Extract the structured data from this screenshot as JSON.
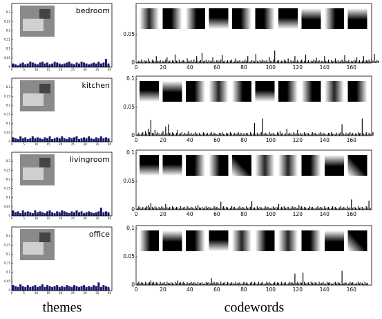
{
  "chart_data": [
    {
      "type": "bar",
      "title": "bedroom",
      "color": "#1a1a6e",
      "xlim": [
        0,
        41
      ],
      "xticks": [
        0,
        5,
        10,
        15,
        20,
        25,
        30,
        35,
        40
      ],
      "ylim": [
        0,
        0.35
      ],
      "yticks": [
        0,
        0.05,
        0.1,
        0.15,
        0.2,
        0.25,
        0.3
      ],
      "values": [
        0.02,
        0.015,
        0.01,
        0.02,
        0.025,
        0.015,
        0.02,
        0.03,
        0.025,
        0.02,
        0.015,
        0.025,
        0.03,
        0.02,
        0.025,
        0.015,
        0.02,
        0.03,
        0.025,
        0.02,
        0.015,
        0.02,
        0.025,
        0.03,
        0.02,
        0.015,
        0.025,
        0.02,
        0.03,
        0.025,
        0.02,
        0.015,
        0.02,
        0.025,
        0.02,
        0.03,
        0.02,
        0.025,
        0.045,
        0.02
      ]
    },
    {
      "type": "bar",
      "title": "kitchen",
      "color": "#1a1a6e",
      "xlim": [
        0,
        41
      ],
      "xticks": [
        0,
        5,
        10,
        15,
        20,
        25,
        30,
        35,
        40
      ],
      "ylim": [
        0,
        0.35
      ],
      "yticks": [
        0,
        0.05,
        0.1,
        0.15,
        0.2,
        0.25,
        0.3
      ],
      "values": [
        0.025,
        0.02,
        0.015,
        0.03,
        0.02,
        0.025,
        0.015,
        0.02,
        0.03,
        0.02,
        0.025,
        0.02,
        0.015,
        0.025,
        0.02,
        0.03,
        0.015,
        0.02,
        0.025,
        0.02,
        0.03,
        0.02,
        0.015,
        0.025,
        0.02,
        0.025,
        0.03,
        0.015,
        0.02,
        0.025,
        0.02,
        0.03,
        0.02,
        0.015,
        0.025,
        0.02,
        0.03,
        0.02,
        0.025,
        0.02
      ]
    },
    {
      "type": "bar",
      "title": "livingroom",
      "color": "#1a1a6e",
      "xlim": [
        0,
        41
      ],
      "xticks": [
        0,
        5,
        10,
        15,
        20,
        25,
        30,
        35,
        40
      ],
      "ylim": [
        0,
        0.35
      ],
      "yticks": [
        0,
        0.05,
        0.1,
        0.15,
        0.2,
        0.25,
        0.3
      ],
      "values": [
        0.03,
        0.02,
        0.025,
        0.015,
        0.03,
        0.02,
        0.025,
        0.02,
        0.015,
        0.03,
        0.02,
        0.025,
        0.02,
        0.015,
        0.025,
        0.03,
        0.02,
        0.015,
        0.025,
        0.02,
        0.03,
        0.025,
        0.02,
        0.015,
        0.025,
        0.02,
        0.03,
        0.02,
        0.025,
        0.015,
        0.02,
        0.025,
        0.02,
        0.015,
        0.02,
        0.025,
        0.045,
        0.02,
        0.025,
        0.02
      ]
    },
    {
      "type": "bar",
      "title": "office",
      "color": "#1a1a6e",
      "xlim": [
        0,
        41
      ],
      "xticks": [
        0,
        5,
        10,
        15,
        20,
        25,
        30,
        35,
        40
      ],
      "ylim": [
        0,
        0.35
      ],
      "yticks": [
        0,
        0.05,
        0.1,
        0.15,
        0.2,
        0.25,
        0.3
      ],
      "values": [
        0.03,
        0.025,
        0.02,
        0.035,
        0.025,
        0.02,
        0.03,
        0.02,
        0.025,
        0.03,
        0.02,
        0.025,
        0.035,
        0.02,
        0.03,
        0.025,
        0.02,
        0.025,
        0.03,
        0.02,
        0.025,
        0.02,
        0.03,
        0.025,
        0.02,
        0.03,
        0.025,
        0.02,
        0.025,
        0.03,
        0.02,
        0.025,
        0.02,
        0.03,
        0.025,
        0.045,
        0.02,
        0.03,
        0.025,
        0.02
      ]
    },
    {
      "type": "bar",
      "color": "#000000",
      "xlim": [
        0,
        175
      ],
      "xticks": [
        0,
        20,
        40,
        60,
        80,
        100,
        120,
        140,
        160
      ],
      "ylim": [
        0,
        0.105
      ],
      "yticks": [
        0,
        0.05
      ],
      "values": [
        0.002,
        0.004,
        0.003,
        0.006,
        0.002,
        0.005,
        0.003,
        0.004,
        0.008,
        0.003,
        0.002,
        0.006,
        0.004,
        0.003,
        0.012,
        0.004,
        0.003,
        0.005,
        0.002,
        0.004,
        0.003,
        0.006,
        0.01,
        0.003,
        0.004,
        0.002,
        0.005,
        0.003,
        0.015,
        0.004,
        0.003,
        0.006,
        0.002,
        0.004,
        0.005,
        0.003,
        0.002,
        0.008,
        0.004,
        0.003,
        0.005,
        0.002,
        0.006,
        0.003,
        0.012,
        0.004,
        0.003,
        0.005,
        0.018,
        0.003,
        0.004,
        0.006,
        0.002,
        0.005,
        0.003,
        0.004,
        0.01,
        0.003,
        0.002,
        0.005,
        0.004,
        0.003,
        0.006,
        0.014,
        0.003,
        0.004,
        0.002,
        0.005,
        0.003,
        0.004,
        0.006,
        0.002,
        0.003,
        0.008,
        0.004,
        0.003,
        0.005,
        0.002,
        0.004,
        0.003,
        0.006,
        0.004,
        0.012,
        0.003,
        0.002,
        0.005,
        0.004,
        0.003,
        0.016,
        0.004,
        0.002,
        0.005,
        0.003,
        0.006,
        0.004,
        0.003,
        0.005,
        0.002,
        0.01,
        0.004,
        0.003,
        0.006,
        0.022,
        0.003,
        0.004,
        0.005,
        0.002,
        0.004,
        0.003,
        0.006,
        0.004,
        0.003,
        0.008,
        0.002,
        0.005,
        0.003,
        0.004,
        0.012,
        0.003,
        0.005,
        0.002,
        0.004,
        0.006,
        0.003,
        0.004,
        0.015,
        0.003,
        0.005,
        0.002,
        0.004,
        0.003,
        0.006,
        0.004,
        0.009,
        0.003,
        0.005,
        0.002,
        0.004,
        0.003,
        0.012,
        0.004,
        0.003,
        0.006,
        0.002,
        0.005,
        0.003,
        0.004,
        0.008,
        0.003,
        0.005,
        0.002,
        0.004,
        0.006,
        0.003,
        0.014,
        0.004,
        0.003,
        0.005,
        0.002,
        0.004,
        0.003,
        0.006,
        0.004,
        0.01,
        0.003,
        0.005,
        0.002,
        0.004,
        0.012,
        0.003,
        0.005,
        0.004,
        0.006,
        0.003,
        0.008,
        0.004,
        0.016,
        0.003,
        0.005,
        0.004
      ]
    },
    {
      "type": "bar",
      "color": "#000000",
      "xlim": [
        0,
        175
      ],
      "xticks": [
        0,
        20,
        40,
        60,
        80,
        100,
        120,
        140,
        160
      ],
      "ylim": [
        0,
        0.105
      ],
      "yticks": [
        0,
        0.05,
        0.1
      ],
      "values": [
        0.003,
        0.005,
        0.002,
        0.004,
        0.006,
        0.003,
        0.008,
        0.004,
        0.012,
        0.006,
        0.028,
        0.005,
        0.004,
        0.01,
        0.003,
        0.006,
        0.004,
        0.002,
        0.005,
        0.008,
        0.003,
        0.016,
        0.004,
        0.02,
        0.005,
        0.003,
        0.006,
        0.004,
        0.002,
        0.005,
        0.01,
        0.003,
        0.004,
        0.006,
        0.002,
        0.005,
        0.003,
        0.004,
        0.008,
        0.003,
        0.005,
        0.002,
        0.004,
        0.006,
        0.003,
        0.004,
        0.005,
        0.002,
        0.003,
        0.006,
        0.004,
        0.003,
        0.005,
        0.002,
        0.004,
        0.006,
        0.003,
        0.005,
        0.004,
        0.002,
        0.003,
        0.005,
        0.004,
        0.006,
        0.003,
        0.002,
        0.005,
        0.004,
        0.003,
        0.006,
        0.004,
        0.002,
        0.005,
        0.003,
        0.004,
        0.006,
        0.003,
        0.005,
        0.002,
        0.004,
        0.003,
        0.005,
        0.004,
        0.002,
        0.006,
        0.003,
        0.004,
        0.022,
        0.003,
        0.005,
        0.002,
        0.004,
        0.006,
        0.03,
        0.003,
        0.005,
        0.004,
        0.002,
        0.006,
        0.003,
        0.004,
        0.005,
        0.002,
        0.003,
        0.006,
        0.004,
        0.008,
        0.003,
        0.005,
        0.002,
        0.004,
        0.012,
        0.003,
        0.005,
        0.004,
        0.002,
        0.006,
        0.003,
        0.004,
        0.01,
        0.003,
        0.005,
        0.002,
        0.004,
        0.006,
        0.003,
        0.005,
        0.004,
        0.002,
        0.003,
        0.006,
        0.004,
        0.005,
        0.003,
        0.002,
        0.004,
        0.006,
        0.003,
        0.005,
        0.004,
        0.002,
        0.003,
        0.005,
        0.004,
        0.006,
        0.003,
        0.004,
        0.002,
        0.005,
        0.003,
        0.004,
        0.006,
        0.02,
        0.004,
        0.002,
        0.005,
        0.003,
        0.004,
        0.006,
        0.003,
        0.005,
        0.002,
        0.004,
        0.003,
        0.006,
        0.004,
        0.005,
        0.03,
        0.004,
        0.003,
        0.006,
        0.002,
        0.005,
        0.003,
        0.004,
        0.006
      ]
    },
    {
      "type": "bar",
      "color": "#000000",
      "xlim": [
        0,
        175
      ],
      "xticks": [
        0,
        20,
        40,
        60,
        80,
        100,
        120,
        140,
        160
      ],
      "ylim": [
        0,
        0.105
      ],
      "yticks": [
        0,
        0.05,
        0.1
      ],
      "values": [
        0.003,
        0.006,
        0.004,
        0.002,
        0.005,
        0.003,
        0.004,
        0.006,
        0.008,
        0.004,
        0.012,
        0.005,
        0.003,
        0.006,
        0.004,
        0.002,
        0.005,
        0.003,
        0.006,
        0.004,
        0.003,
        0.01,
        0.004,
        0.003,
        0.005,
        0.002,
        0.006,
        0.004,
        0.003,
        0.005,
        0.004,
        0.002,
        0.006,
        0.003,
        0.004,
        0.005,
        0.002,
        0.006,
        0.004,
        0.003,
        0.005,
        0.004,
        0.002,
        0.006,
        0.003,
        0.008,
        0.004,
        0.003,
        0.005,
        0.002,
        0.004,
        0.006,
        0.003,
        0.005,
        0.004,
        0.002,
        0.003,
        0.006,
        0.004,
        0.005,
        0.003,
        0.002,
        0.014,
        0.004,
        0.006,
        0.003,
        0.005,
        0.004,
        0.002,
        0.003,
        0.006,
        0.004,
        0.005,
        0.003,
        0.002,
        0.004,
        0.006,
        0.003,
        0.005,
        0.004,
        0.002,
        0.006,
        0.003,
        0.004,
        0.005,
        0.015,
        0.003,
        0.004,
        0.002,
        0.006,
        0.003,
        0.005,
        0.004,
        0.002,
        0.003,
        0.006,
        0.004,
        0.005,
        0.003,
        0.002,
        0.004,
        0.006,
        0.003,
        0.005,
        0.004,
        0.01,
        0.002,
        0.005,
        0.004,
        0.006,
        0.003,
        0.004,
        0.005,
        0.002,
        0.003,
        0.006,
        0.004,
        0.005,
        0.003,
        0.002,
        0.008,
        0.004,
        0.006,
        0.003,
        0.005,
        0.004,
        0.002,
        0.003,
        0.006,
        0.004,
        0.005,
        0.003,
        0.002,
        0.004,
        0.006,
        0.003,
        0.005,
        0.004,
        0.002,
        0.006,
        0.003,
        0.004,
        0.005,
        0.002,
        0.003,
        0.006,
        0.004,
        0.005,
        0.003,
        0.002,
        0.004,
        0.006,
        0.003,
        0.005,
        0.004,
        0.002,
        0.006,
        0.003,
        0.004,
        0.018,
        0.003,
        0.005,
        0.004,
        0.002,
        0.006,
        0.003,
        0.004,
        0.005,
        0.002,
        0.003,
        0.006,
        0.004,
        0.016,
        0.003
      ]
    },
    {
      "type": "bar",
      "color": "#000000",
      "xlim": [
        0,
        175
      ],
      "xticks": [
        0,
        20,
        40,
        60,
        80,
        100,
        120,
        140,
        160
      ],
      "ylim": [
        0,
        0.105
      ],
      "yticks": [
        0,
        0.05,
        0.1
      ],
      "values": [
        0.004,
        0.006,
        0.003,
        0.005,
        0.004,
        0.002,
        0.006,
        0.003,
        0.004,
        0.005,
        0.008,
        0.004,
        0.006,
        0.003,
        0.005,
        0.004,
        0.002,
        0.006,
        0.003,
        0.004,
        0.005,
        0.002,
        0.006,
        0.004,
        0.003,
        0.005,
        0.004,
        0.002,
        0.006,
        0.003,
        0.008,
        0.004,
        0.005,
        0.003,
        0.006,
        0.004,
        0.002,
        0.005,
        0.003,
        0.004,
        0.006,
        0.003,
        0.005,
        0.004,
        0.002,
        0.006,
        0.003,
        0.004,
        0.005,
        0.002,
        0.003,
        0.006,
        0.004,
        0.005,
        0.003,
        0.012,
        0.004,
        0.006,
        0.003,
        0.005,
        0.004,
        0.002,
        0.006,
        0.003,
        0.004,
        0.005,
        0.002,
        0.006,
        0.004,
        0.003,
        0.005,
        0.004,
        0.002,
        0.006,
        0.003,
        0.004,
        0.005,
        0.002,
        0.003,
        0.006,
        0.004,
        0.005,
        0.003,
        0.002,
        0.004,
        0.006,
        0.003,
        0.005,
        0.004,
        0.002,
        0.006,
        0.003,
        0.004,
        0.005,
        0.002,
        0.003,
        0.006,
        0.004,
        0.005,
        0.003,
        0.002,
        0.004,
        0.006,
        0.003,
        0.005,
        0.004,
        0.002,
        0.006,
        0.003,
        0.004,
        0.005,
        0.002,
        0.003,
        0.006,
        0.004,
        0.005,
        0.003,
        0.02,
        0.004,
        0.006,
        0.003,
        0.005,
        0.004,
        0.022,
        0.006,
        0.003,
        0.004,
        0.005,
        0.002,
        0.006,
        0.004,
        0.003,
        0.005,
        0.004,
        0.002,
        0.006,
        0.003,
        0.004,
        0.005,
        0.002,
        0.003,
        0.006,
        0.004,
        0.005,
        0.003,
        0.002,
        0.004,
        0.006,
        0.003,
        0.005,
        0.004,
        0.002,
        0.025,
        0.003,
        0.004,
        0.005,
        0.002,
        0.003,
        0.006,
        0.004,
        0.005,
        0.003,
        0.002,
        0.004,
        0.006,
        0.003,
        0.005,
        0.004,
        0.002,
        0.006,
        0.003,
        0.004
      ]
    }
  ],
  "captions": {
    "left": "themes",
    "right": "codewords"
  }
}
